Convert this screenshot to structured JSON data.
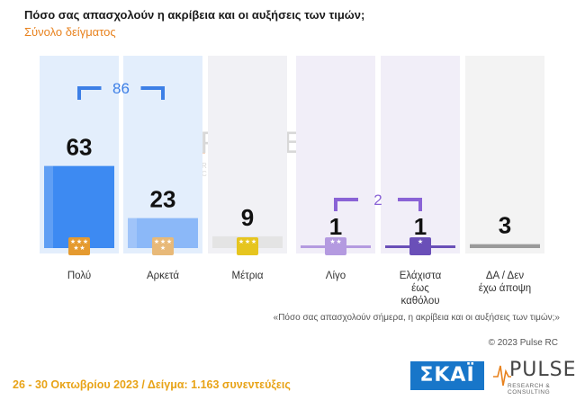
{
  "header": {
    "title": "Πόσο σας απασχολούν η ακρίβεια και οι αυξήσεις των τιμών;",
    "subtitle": "Σύνολο δείγματος"
  },
  "chart_data": {
    "type": "bar",
    "categories": [
      "Πολύ",
      "Αρκετά",
      "Μέτρια",
      "Λίγο",
      "Ελάχιστα έως καθόλου",
      "ΔΑ / Δεν έχω άποψη"
    ],
    "category_lines": [
      [
        "Πολύ"
      ],
      [
        "Αρκετά"
      ],
      [
        "Μέτρια"
      ],
      [
        "Λίγο"
      ],
      [
        "Ελάχιστα",
        "έως",
        "καθόλου"
      ],
      [
        "ΔΑ / Δεν",
        "έχω άποψη"
      ]
    ],
    "values": [
      63,
      23,
      9,
      1,
      1,
      3
    ],
    "ylim": [
      0,
      100
    ],
    "bar_colors": [
      "#3d8af2",
      "#8bb8f8",
      "#e4e4e4",
      "#b49ae0",
      "#6a4fb8",
      "#9a9a9a"
    ],
    "column_bg_colors": [
      "#e3eefc",
      "#e3eefc",
      "#f1f1f5",
      "#f1eef8",
      "#f1eef8",
      "#f3f3f3"
    ],
    "badge_colors": [
      "#e59a2f",
      "#e8b978",
      "#e6c51f",
      "#b49ae0",
      "#6a4fb8",
      null
    ],
    "badge_stars": [
      5,
      4,
      3,
      2,
      1,
      0
    ],
    "groups": [
      {
        "label": "86",
        "from": 0,
        "to": 1,
        "color": "#3d7fe6"
      },
      {
        "label": "2",
        "from": 3,
        "to": 4,
        "color": "#8a63d6"
      }
    ]
  },
  "footer": {
    "question": "«Πόσο σας απασχολούν σήμερα, η ακρίβεια και οι αυξήσεις των τιμών;»",
    "copyright": "© 2023 Pulse RC",
    "survey_info": "26 - 30 Οκτωβρίου 2023 / Δείγμα: 1.163 συνεντεύξεις"
  },
  "logos": {
    "broadcaster": "ΣΚΑΪ",
    "pollster": "PULSE",
    "pollster_tagline": "RESEARCH & CONSULTING"
  }
}
